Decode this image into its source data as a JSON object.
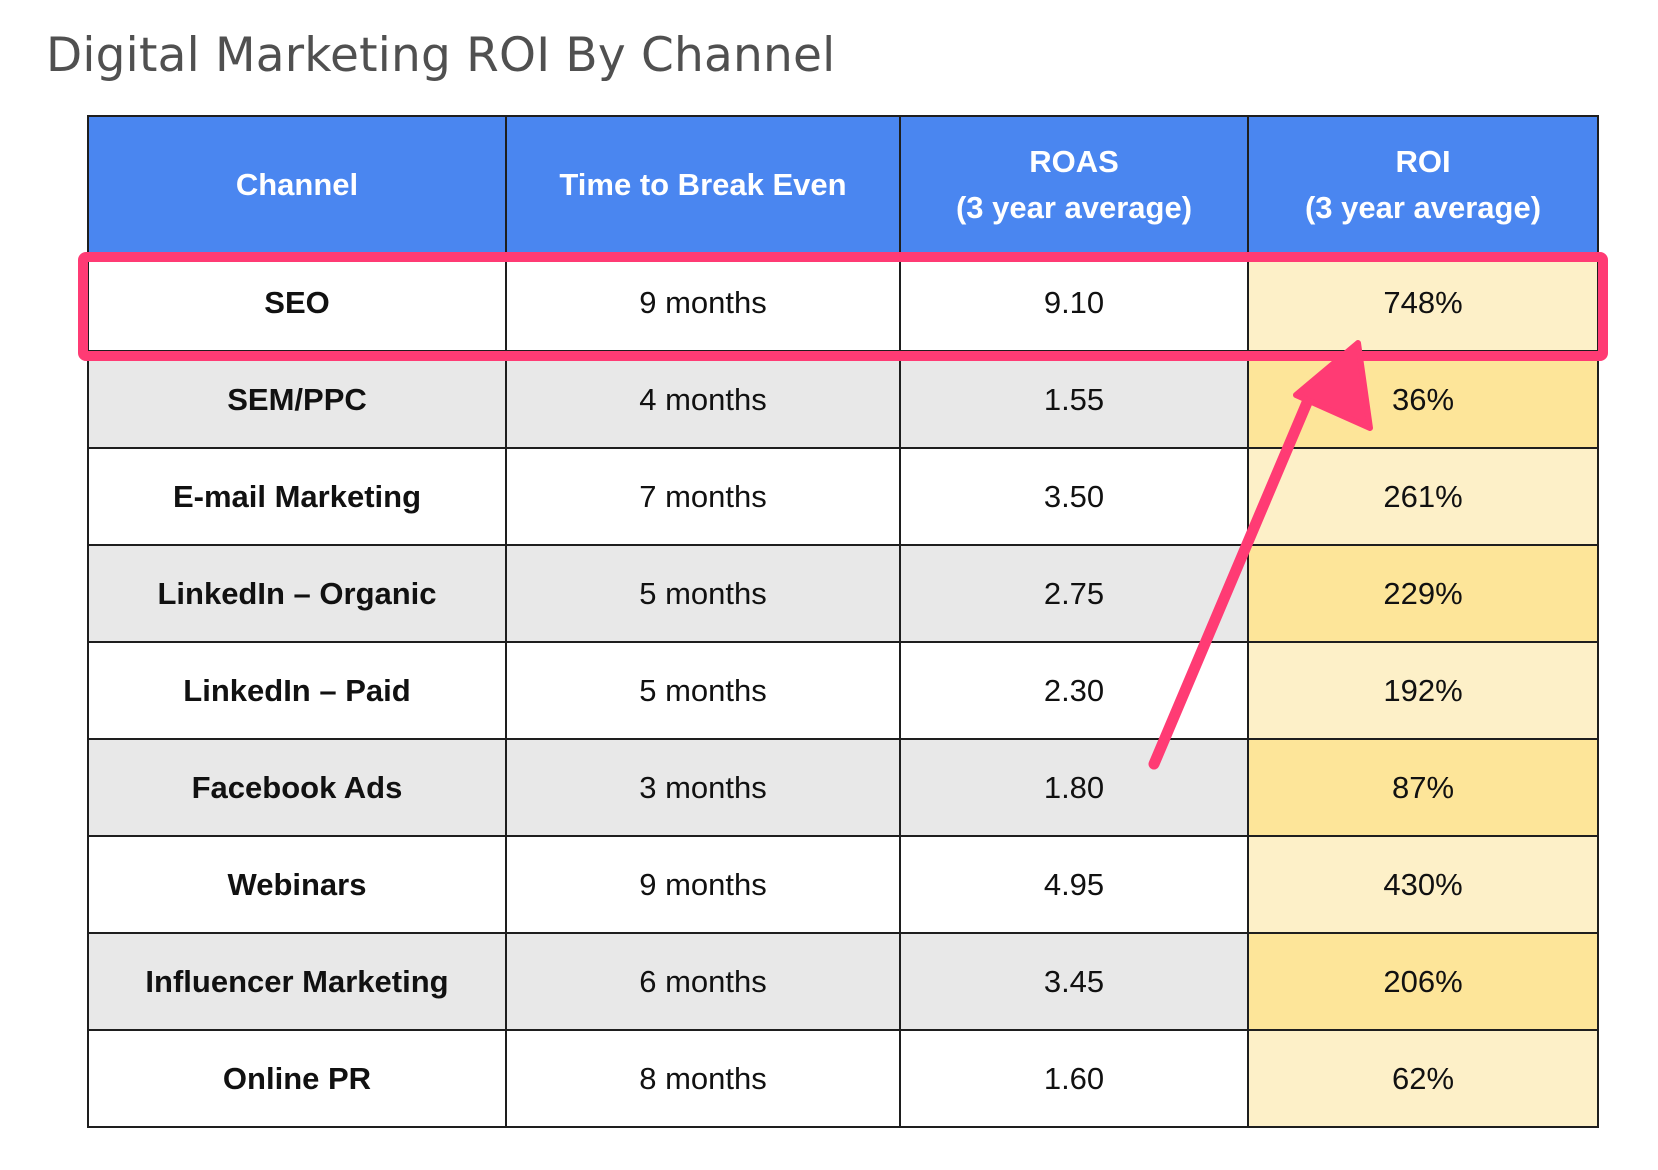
{
  "page": {
    "title": "Digital Marketing ROI By Channel"
  },
  "colors": {
    "header_background": "#4a86f0",
    "header_text": "#ffffff",
    "alternate_row_background": "#e8e8e8",
    "roi_column_light": "#fdf0c8",
    "roi_column_dark": "#fde599",
    "highlight": "#ff3b74"
  },
  "annotation": {
    "highlighted_channel": "SEO",
    "arrow_icon": "arrow-up-right-icon"
  },
  "chart_data": {
    "type": "table",
    "title": "Digital Marketing ROI By Channel",
    "columns": [
      {
        "key": "channel",
        "label_lines": [
          "Channel"
        ]
      },
      {
        "key": "time_to_break_even",
        "label_lines": [
          "Time to Break Even"
        ]
      },
      {
        "key": "roas",
        "label_lines": [
          "ROAS",
          "(3  year average)"
        ]
      },
      {
        "key": "roi",
        "label_lines": [
          "ROI",
          "(3 year average)"
        ]
      }
    ],
    "rows": [
      {
        "channel": "SEO",
        "time_to_break_even": "9 months",
        "roas": "9.10",
        "roi": "748%"
      },
      {
        "channel": "SEM/PPC",
        "time_to_break_even": "4 months",
        "roas": "1.55",
        "roi": "36%"
      },
      {
        "channel": "E-mail Marketing",
        "time_to_break_even": "7 months",
        "roas": "3.50",
        "roi": "261%"
      },
      {
        "channel": "LinkedIn – Organic",
        "time_to_break_even": "5 months",
        "roas": "2.75",
        "roi": "229%"
      },
      {
        "channel": "LinkedIn – Paid",
        "time_to_break_even": "5 months",
        "roas": "2.30",
        "roi": "192%"
      },
      {
        "channel": "Facebook Ads",
        "time_to_break_even": "3 months",
        "roas": "1.80",
        "roi": "87%"
      },
      {
        "channel": "Webinars",
        "time_to_break_even": "9 months",
        "roas": "4.95",
        "roi": "430%"
      },
      {
        "channel": "Influencer Marketing",
        "time_to_break_even": "6 months",
        "roas": "3.45",
        "roi": "206%"
      },
      {
        "channel": "Online PR",
        "time_to_break_even": "8 months",
        "roas": "1.60",
        "roi": "62%"
      }
    ]
  }
}
